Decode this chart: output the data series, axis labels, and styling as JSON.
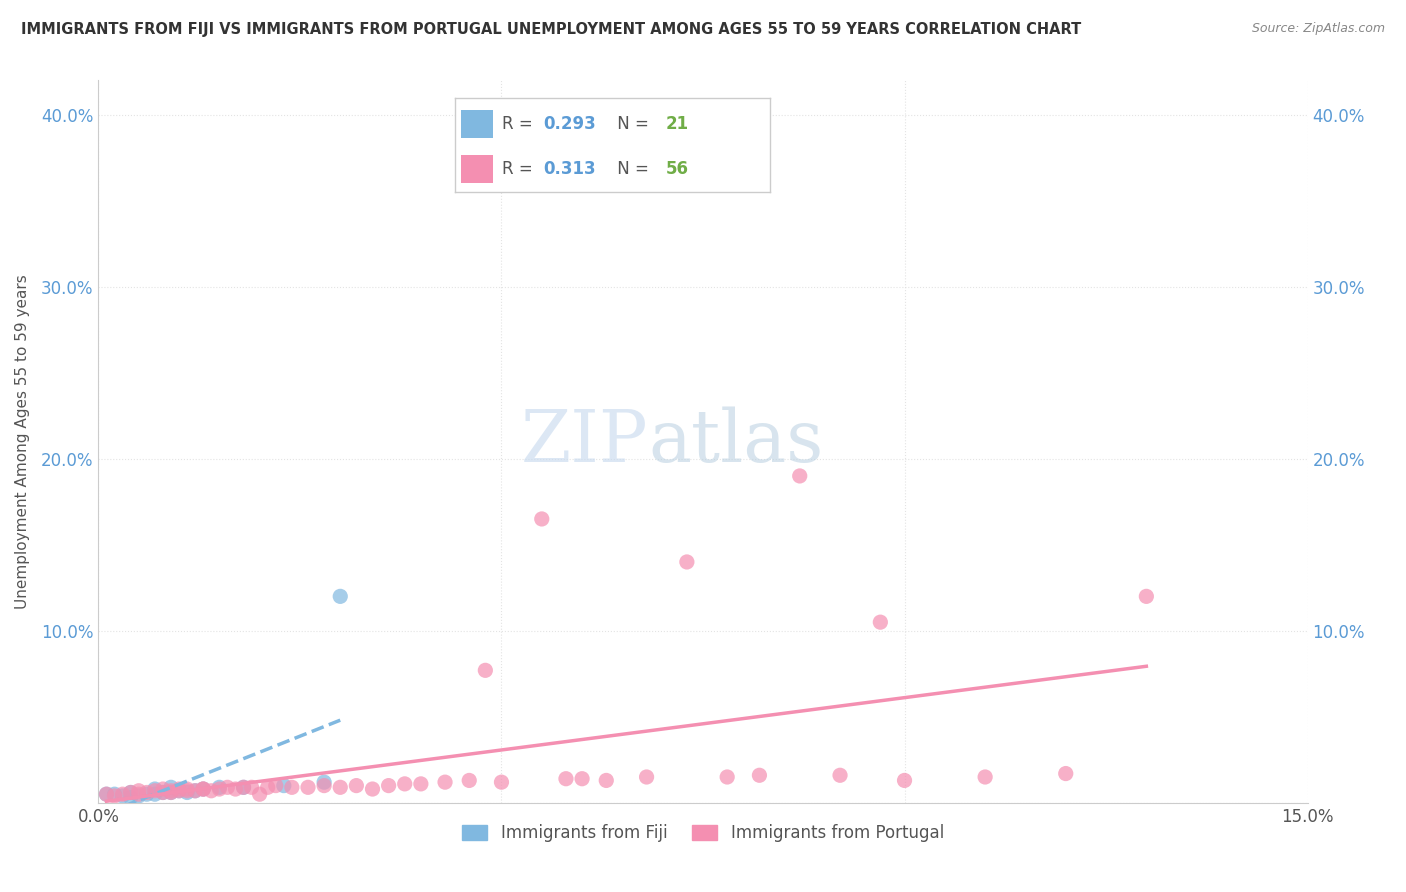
{
  "title": "IMMIGRANTS FROM FIJI VS IMMIGRANTS FROM PORTUGAL UNEMPLOYMENT AMONG AGES 55 TO 59 YEARS CORRELATION CHART",
  "source": "Source: ZipAtlas.com",
  "ylabel": "Unemployment Among Ages 55 to 59 years",
  "xlim": [
    0.0,
    0.15
  ],
  "ylim": [
    0.0,
    0.42
  ],
  "fiji_color": "#80b8e0",
  "portugal_color": "#f48fb1",
  "fiji_R": 0.293,
  "fiji_N": 21,
  "portugal_R": 0.313,
  "portugal_N": 56,
  "watermark_zip": "ZIP",
  "watermark_atlas": "atlas",
  "background_color": "#ffffff",
  "grid_color": "#dddddd",
  "fiji_scatter_x": [
    0.001,
    0.002,
    0.003,
    0.004,
    0.004,
    0.005,
    0.006,
    0.007,
    0.007,
    0.008,
    0.009,
    0.009,
    0.01,
    0.011,
    0.012,
    0.013,
    0.015,
    0.018,
    0.023,
    0.028,
    0.03
  ],
  "fiji_scatter_y": [
    0.005,
    0.005,
    0.004,
    0.003,
    0.006,
    0.004,
    0.005,
    0.005,
    0.008,
    0.006,
    0.006,
    0.009,
    0.007,
    0.006,
    0.007,
    0.008,
    0.009,
    0.009,
    0.01,
    0.012,
    0.12
  ],
  "portugal_scatter_x": [
    0.001,
    0.002,
    0.003,
    0.004,
    0.005,
    0.005,
    0.006,
    0.007,
    0.008,
    0.008,
    0.009,
    0.009,
    0.01,
    0.01,
    0.011,
    0.011,
    0.012,
    0.013,
    0.013,
    0.014,
    0.015,
    0.016,
    0.017,
    0.018,
    0.019,
    0.02,
    0.021,
    0.022,
    0.024,
    0.026,
    0.028,
    0.03,
    0.032,
    0.034,
    0.036,
    0.038,
    0.04,
    0.043,
    0.046,
    0.048,
    0.05,
    0.055,
    0.058,
    0.06,
    0.063,
    0.068,
    0.073,
    0.078,
    0.082,
    0.087,
    0.092,
    0.097,
    0.1,
    0.11,
    0.12,
    0.13
  ],
  "portugal_scatter_y": [
    0.005,
    0.004,
    0.005,
    0.006,
    0.005,
    0.007,
    0.006,
    0.007,
    0.006,
    0.008,
    0.006,
    0.007,
    0.007,
    0.008,
    0.007,
    0.008,
    0.007,
    0.008,
    0.008,
    0.007,
    0.008,
    0.009,
    0.008,
    0.009,
    0.009,
    0.005,
    0.009,
    0.01,
    0.009,
    0.009,
    0.01,
    0.009,
    0.01,
    0.008,
    0.01,
    0.011,
    0.011,
    0.012,
    0.013,
    0.077,
    0.012,
    0.165,
    0.014,
    0.014,
    0.013,
    0.015,
    0.14,
    0.015,
    0.016,
    0.19,
    0.016,
    0.105,
    0.013,
    0.015,
    0.017,
    0.12
  ],
  "legend_r_color": "#5b9bd5",
  "legend_n_color": "#70ad47",
  "legend_label_color": "#555555",
  "ytick_color": "#5b9bd5",
  "title_color": "#333333",
  "source_color": "#888888"
}
